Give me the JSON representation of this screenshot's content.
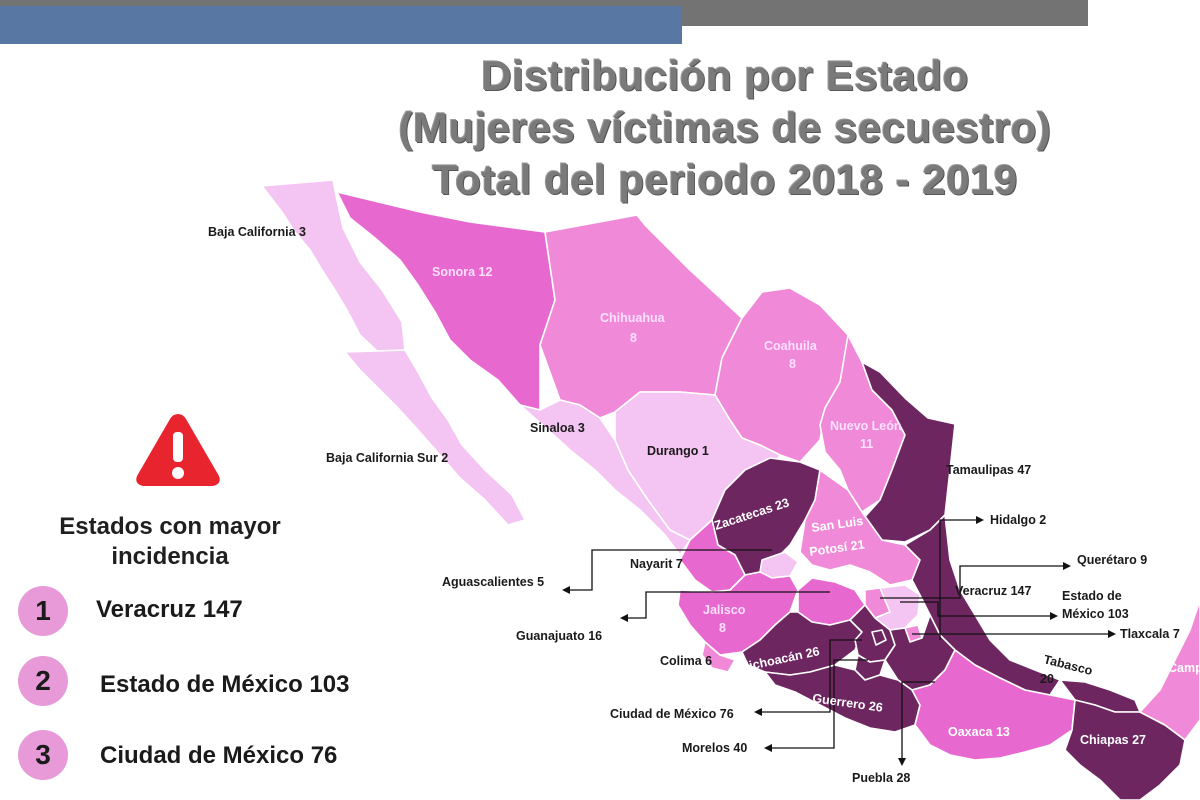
{
  "title": {
    "line1": "Distribución por Estado",
    "line2": "(Mujeres víctimas de secuestro)",
    "line3": "Total del periodo 2018 - 2019"
  },
  "colors": {
    "lightest": "#f4c4f2",
    "light": "#f08ad8",
    "medium": "#e768cf",
    "dark": "#6e2661",
    "warning": "#e8252f"
  },
  "states": {
    "baja_california": "Baja California  3",
    "baja_california_sur": "Baja California Sur  2",
    "sonora": "Sonora  12",
    "chihuahua_name": "Chihuahua",
    "chihuahua_value": "8",
    "coahuila_name": "Coahuila",
    "coahuila_value": "8",
    "nuevo_leon_name": "Nuevo León",
    "nuevo_leon_value": "11",
    "sinaloa": "Sinaloa  3",
    "durango": "Durango  1",
    "tamaulipas": "Tamaulipas  47",
    "zacatecas": "Zacatecas 23",
    "slp_line1": "San Luis",
    "slp_line2": "Potosí 21",
    "hidalgo": "Hidalgo  2",
    "nayarit": "Nayarit 7",
    "queretaro": "Querétaro  9",
    "aguascalientes": "Aguascalientes  5",
    "veracruz": "Veracruz  147",
    "edomex_line1": "Estado de",
    "edomex_line2": "México 103",
    "jalisco_name": "Jalisco",
    "jalisco_value": "8",
    "guanajuato": "Guanajuato  16",
    "tlaxcala": "Tlaxcala 7",
    "michoacan": "Michoacán 26",
    "colima": "Colima 6",
    "tabasco_name": "Tabasco",
    "tabasco_value": "20",
    "campeche": "Camp",
    "guerrero": "Guerrero 26",
    "oaxaca": "Oaxaca  13",
    "chiapas": "Chiapas 27",
    "cdmx": "Ciudad de México  76",
    "morelos": "Morelos 40",
    "puebla": "Puebla 28"
  },
  "panel": {
    "icon": "warning-icon",
    "title_line1": "Estados con mayor",
    "title_line2": "incidencia",
    "ranking": [
      {
        "rank": "1",
        "name": "Veracruz  147"
      },
      {
        "rank": "2",
        "name": "Estado de México 103"
      },
      {
        "rank": "3",
        "name": "Ciudad de México  76"
      }
    ]
  }
}
